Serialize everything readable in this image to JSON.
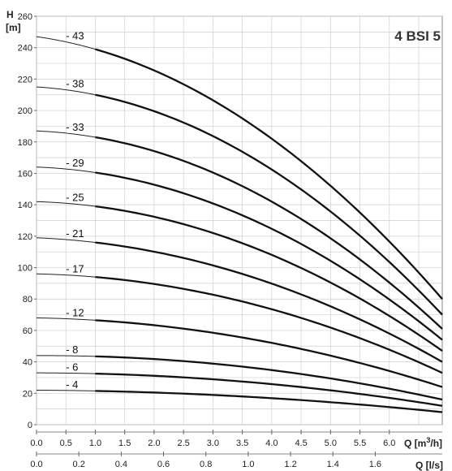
{
  "chart_data": {
    "type": "line",
    "title": "4 BSI 5",
    "ylabel": "H",
    "ylabel_unit": "[m]",
    "xlabel_top": "Q [m³/h]",
    "xlabel_top_text": "Q [m",
    "xlabel_top_sup": "3",
    "xlabel_top_end": "/h]",
    "xlabel_bottom": "Q [l/s]",
    "xlim": [
      0,
      6.9
    ],
    "ylim": [
      0,
      260
    ],
    "grid": true,
    "x_ticks": [
      "0.0",
      "0.5",
      "1.0",
      "1.5",
      "2.0",
      "2.5",
      "3.0",
      "3.5",
      "4.0",
      "4.5",
      "5.0",
      "5.5",
      "6.0"
    ],
    "x_ticks_ls": [
      "0.0",
      "0.2",
      "0.4",
      "0.6",
      "0.8",
      "1.0",
      "1.2",
      "1.4",
      "1.6"
    ],
    "y_ticks": [
      "0",
      "20",
      "40",
      "60",
      "80",
      "100",
      "120",
      "140",
      "160",
      "180",
      "200",
      "220",
      "240",
      "260"
    ],
    "thin_segment_x": [
      0,
      1.0
    ],
    "thick_segment_x": [
      1.0,
      6.9
    ],
    "series": [
      {
        "name": "- 4",
        "y_at_0": 22,
        "y_at_1": 21.5,
        "y_at_end": 8
      },
      {
        "name": "- 6",
        "y_at_0": 33,
        "y_at_1": 32.5,
        "y_at_end": 12
      },
      {
        "name": "- 8",
        "y_at_0": 44,
        "y_at_1": 43.5,
        "y_at_end": 16
      },
      {
        "name": "- 12",
        "y_at_0": 68,
        "y_at_1": 66.5,
        "y_at_end": 24
      },
      {
        "name": "- 17",
        "y_at_0": 96,
        "y_at_1": 94,
        "y_at_end": 33
      },
      {
        "name": "- 21",
        "y_at_0": 119,
        "y_at_1": 116,
        "y_at_end": 40
      },
      {
        "name": "- 25",
        "y_at_0": 142,
        "y_at_1": 139,
        "y_at_end": 47
      },
      {
        "name": "- 29",
        "y_at_0": 164,
        "y_at_1": 160.5,
        "y_at_end": 54
      },
      {
        "name": "- 33",
        "y_at_0": 187,
        "y_at_1": 183,
        "y_at_end": 61
      },
      {
        "name": "- 38",
        "y_at_0": 215,
        "y_at_1": 210,
        "y_at_end": 70
      },
      {
        "name": "- 43",
        "y_at_0": 247,
        "y_at_1": 239,
        "y_at_end": 80
      }
    ]
  }
}
